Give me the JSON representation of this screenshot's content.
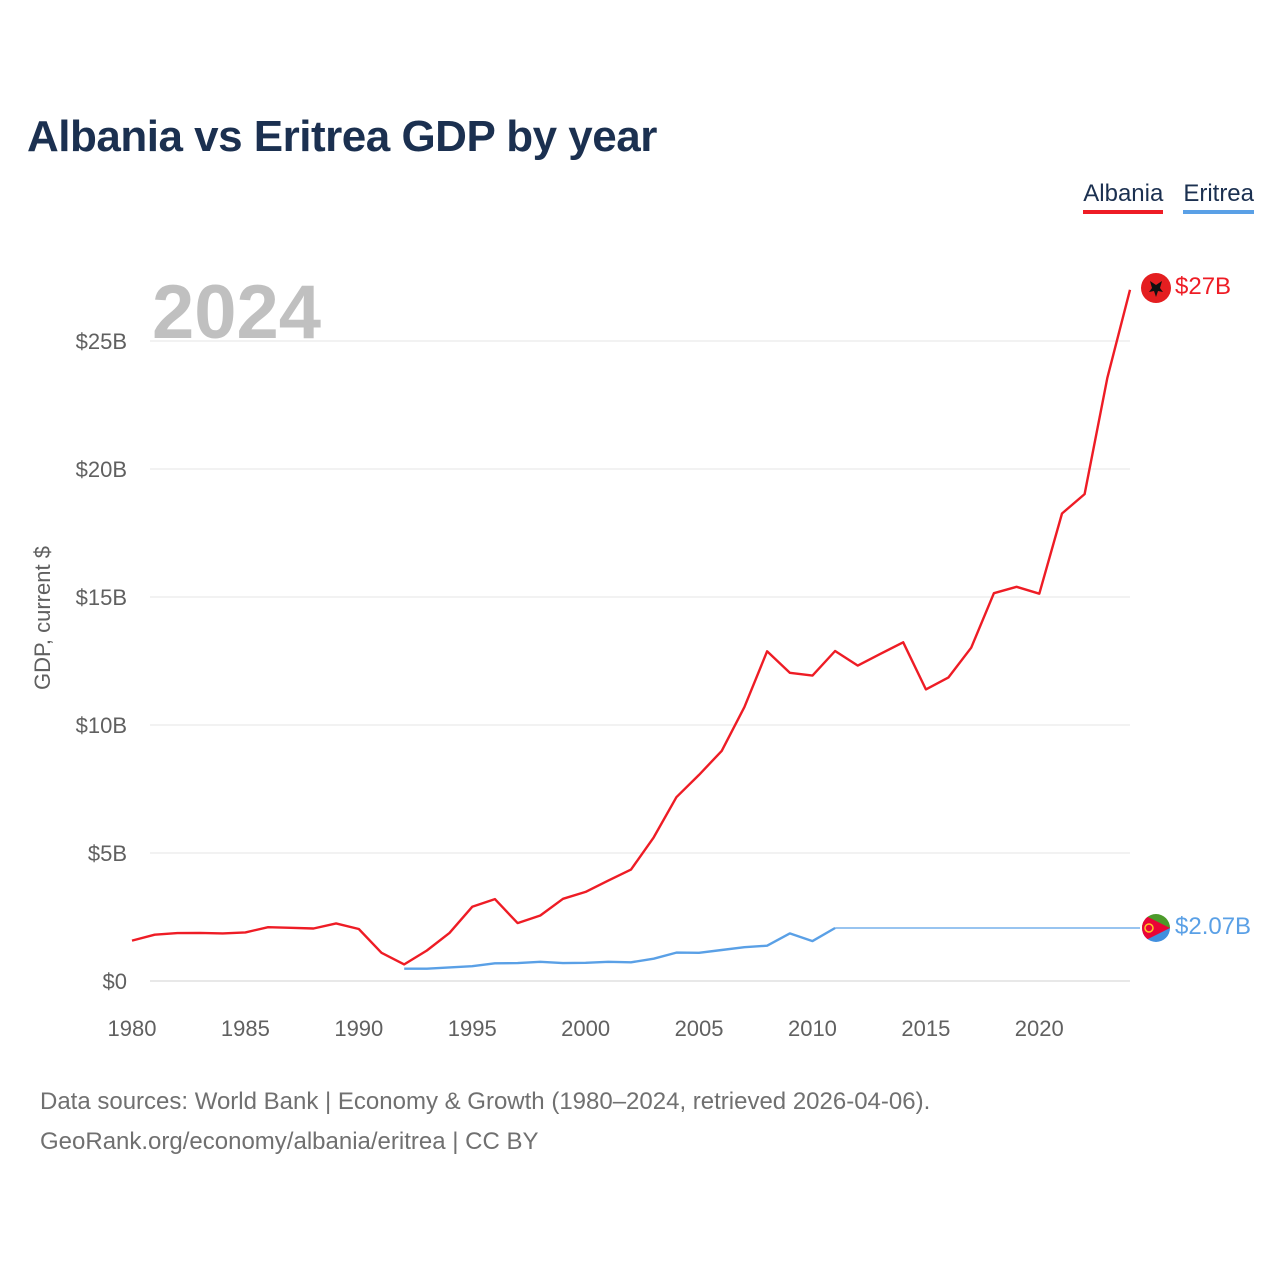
{
  "title": "Albania vs Eritrea GDP by year",
  "legend": {
    "albania": "Albania",
    "eritrea": "Eritrea"
  },
  "colors": {
    "albania": "#ee1c25",
    "eritrea": "#5aa0e6",
    "title": "#1b3050",
    "year_watermark": "#c0c0c0"
  },
  "footer": {
    "line1": "Data sources: World Bank | Economy & Growth (1980–2024, retrieved 2026-04-06).",
    "line2": "GeoRank.org/economy/albania/eritrea | CC BY"
  },
  "chart_data": {
    "type": "line",
    "title": "Albania vs Eritrea GDP by year",
    "year_label": "2024",
    "xlabel": "",
    "ylabel": "GDP, current $",
    "xlim": [
      1980,
      2024
    ],
    "ylim": [
      0,
      27
    ],
    "xticks": [
      1980,
      1985,
      1990,
      1995,
      2000,
      2005,
      2010,
      2015,
      2020
    ],
    "xtick_labels": [
      "1980",
      "1985",
      "1990",
      "1995",
      "2000",
      "2005",
      "2010",
      "2015",
      "2020"
    ],
    "yticks": [
      0,
      5,
      10,
      15,
      20,
      25
    ],
    "ytick_labels": [
      "$0",
      "$5B",
      "$10B",
      "$15B",
      "$20B",
      "$25B"
    ],
    "grid": true,
    "legend_position": "top-right",
    "series": [
      {
        "name": "Albania",
        "end_label": "$27B",
        "x": [
          1980,
          1981,
          1982,
          1983,
          1984,
          1985,
          1986,
          1987,
          1988,
          1989,
          1990,
          1991,
          1992,
          1993,
          1994,
          1995,
          1996,
          1997,
          1998,
          1999,
          2000,
          2001,
          2002,
          2003,
          2004,
          2005,
          2006,
          2007,
          2008,
          2009,
          2010,
          2011,
          2012,
          2013,
          2014,
          2015,
          2016,
          2017,
          2018,
          2019,
          2020,
          2021,
          2022,
          2023,
          2024
        ],
        "values": [
          1.58,
          1.81,
          1.87,
          1.88,
          1.86,
          1.9,
          2.1,
          2.08,
          2.05,
          2.25,
          2.03,
          1.1,
          0.65,
          1.19,
          1.88,
          2.9,
          3.2,
          2.26,
          2.56,
          3.21,
          3.48,
          3.92,
          4.35,
          5.61,
          7.18,
          8.05,
          8.99,
          10.7,
          12.88,
          12.04,
          11.93,
          12.89,
          12.32,
          12.78,
          13.23,
          11.39,
          11.86,
          13.02,
          15.15,
          15.4,
          15.13,
          18.26,
          19.02,
          23.55,
          27.0
        ],
        "style": "solid"
      },
      {
        "name": "Eritrea",
        "end_label": "$2.07B",
        "x": [
          1992,
          1993,
          1994,
          1995,
          1996,
          1997,
          1998,
          1999,
          2000,
          2001,
          2002,
          2003,
          2004,
          2005,
          2006,
          2007,
          2008,
          2009,
          2010,
          2011
        ],
        "values": [
          0.48,
          0.48,
          0.53,
          0.58,
          0.69,
          0.7,
          0.75,
          0.7,
          0.71,
          0.75,
          0.73,
          0.87,
          1.11,
          1.1,
          1.21,
          1.32,
          1.38,
          1.86,
          1.56,
          2.07
        ],
        "carry_forward_to": 2024,
        "carry_forward_value": 2.07,
        "style": "solid"
      }
    ]
  }
}
